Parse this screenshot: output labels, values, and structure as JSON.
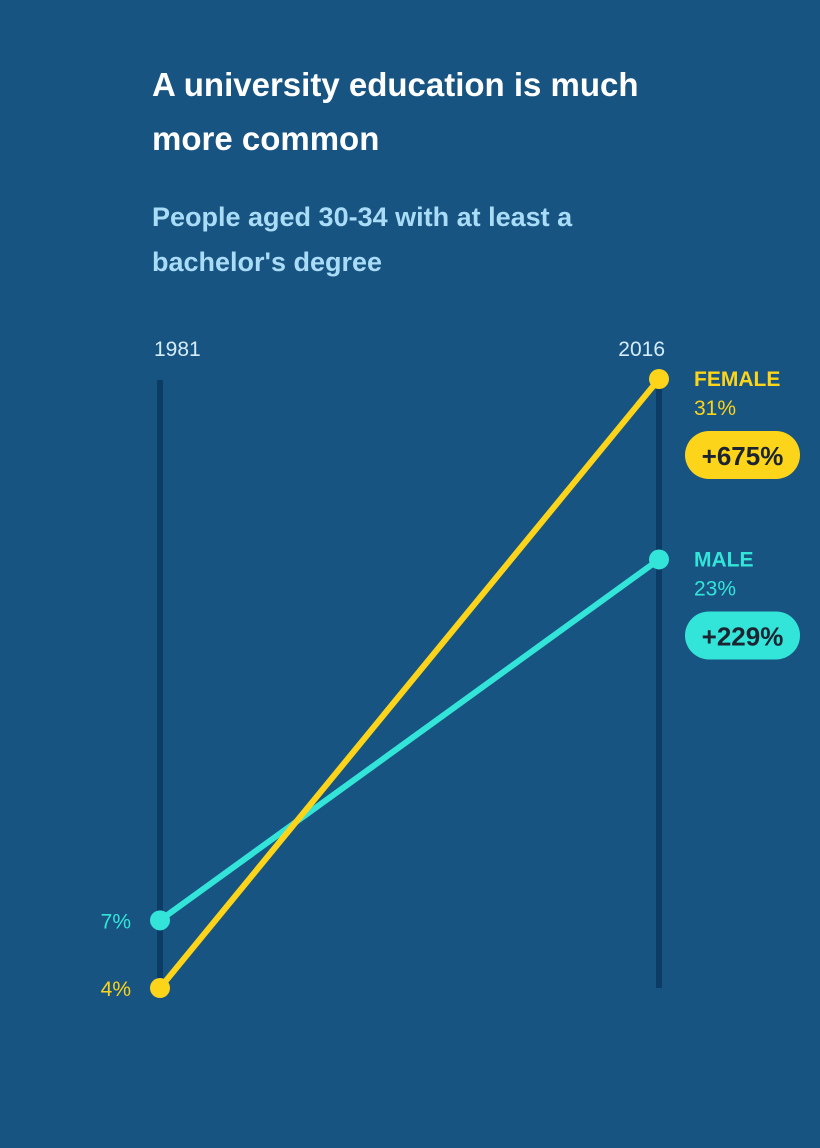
{
  "title": "A university education is much more common",
  "subtitle": "People aged 30-34 with at least a bachelor's degree",
  "colors": {
    "background": "#185481",
    "axis": "#0c3b63",
    "female": "#fcd419",
    "male": "#33e4d9",
    "change_text": "#1b2430",
    "title": "#ffffff",
    "subtitle": "#a9dcf6",
    "year_label": "#d4ecfa"
  },
  "chart_data": {
    "type": "line",
    "x": [
      "1981",
      "2016"
    ],
    "ylim": [
      4,
      31
    ],
    "series": [
      {
        "key": "female",
        "name": "FEMALE",
        "values": [
          4,
          31
        ],
        "start_label": "4%",
        "end_label": "31%",
        "change_label": "+675%"
      },
      {
        "key": "male",
        "name": "MALE",
        "values": [
          7,
          23
        ],
        "start_label": "7%",
        "end_label": "23%",
        "change_label": "+229%"
      }
    ]
  }
}
